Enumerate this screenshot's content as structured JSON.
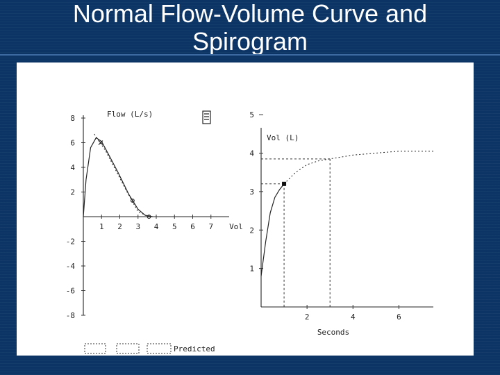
{
  "slide": {
    "title_line1": "Normal Flow-Volume Curve and",
    "title_line2": "Spirogram"
  },
  "chart_data": [
    {
      "type": "line",
      "ylabel": "Flow (L/s)",
      "xlabel": "Vol",
      "xlim": [
        0,
        8
      ],
      "ylim": [
        -8,
        8
      ],
      "x_ticks": [
        "1",
        "2",
        "3",
        "4",
        "5",
        "6",
        "7"
      ],
      "y_ticks": [
        "8",
        "6",
        "4",
        "2",
        "-2",
        "-4",
        "-6",
        "-8"
      ],
      "series": [
        {
          "style": "solid",
          "x": [
            0,
            0.15,
            0.4,
            0.7,
            1.0,
            1.4,
            1.9,
            2.5,
            3.0,
            3.4,
            3.8
          ],
          "y": [
            0,
            3.0,
            5.6,
            6.4,
            6.1,
            5.0,
            3.6,
            1.8,
            0.6,
            0.1,
            0.0
          ]
        },
        {
          "style": "dotted",
          "x": [
            0.6,
            1.2,
            1.8,
            2.4,
            3.0,
            3.6
          ],
          "y": [
            6.7,
            5.4,
            3.7,
            2.0,
            0.4,
            0.0
          ]
        }
      ],
      "markers": [
        {
          "x": 0.95,
          "y": 6.0,
          "symbol": "x"
        },
        {
          "x": 2.7,
          "y": 1.3,
          "symbol": "o"
        },
        {
          "x": 3.6,
          "y": 0.0,
          "symbol": "o"
        }
      ],
      "legend_icon": "equation-box-icon"
    },
    {
      "type": "line",
      "ylabel": "Vol (L)",
      "xlabel": "Seconds",
      "xlim": [
        0,
        7.5
      ],
      "ylim": [
        0,
        5
      ],
      "x_ticks": [
        "2",
        "4",
        "6"
      ],
      "y_ticks": [
        "5",
        "4",
        "3",
        "2",
        "1"
      ],
      "series": [
        {
          "style": "solid",
          "x": [
            0,
            0.2,
            0.4,
            0.6,
            0.8,
            1.0
          ],
          "y": [
            0.8,
            1.7,
            2.45,
            2.85,
            3.05,
            3.2
          ]
        },
        {
          "style": "dotted",
          "x": [
            1.0,
            1.5,
            2.0,
            2.5,
            3.0,
            4.0,
            5.0,
            6.0,
            7.0,
            7.5
          ],
          "y": [
            3.2,
            3.5,
            3.7,
            3.8,
            3.85,
            3.95,
            4.0,
            4.05,
            4.05,
            4.05
          ]
        }
      ],
      "reference_lines": [
        {
          "axis": "y",
          "value": 3.85
        },
        {
          "axis": "y",
          "value": 3.2
        },
        {
          "axis": "x",
          "value": 1.0
        },
        {
          "axis": "x",
          "value": 3.0
        }
      ],
      "markers": [
        {
          "x": 1.0,
          "y": 3.2,
          "symbol": "filled-square"
        }
      ]
    }
  ],
  "legend": {
    "items": [
      {
        "label": "",
        "style": "box"
      },
      {
        "label": "",
        "style": "box"
      },
      {
        "label": "Predicted",
        "style": "dashed-box"
      }
    ]
  }
}
